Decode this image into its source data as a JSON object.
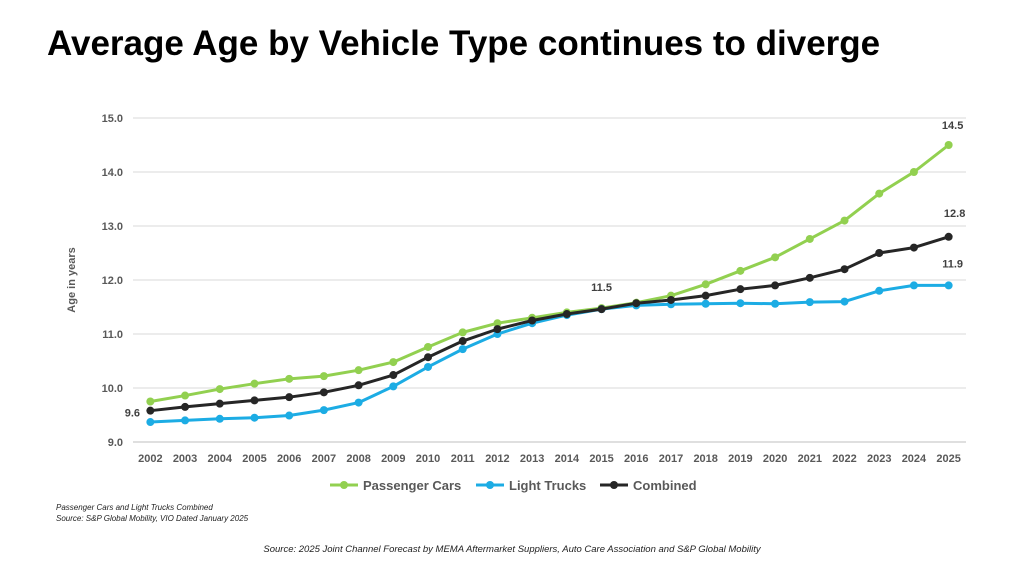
{
  "title": "Average Age by Vehicle Type continues to diverge",
  "footnote_line1": "Passenger Cars and Light Trucks Combined",
  "footnote_line2": "Source: S&P Global Mobility, VIO Dated January 2025",
  "source": "Source: 2025 Joint Channel Forecast by MEMA Aftermarket Suppliers, Auto Care Association and S&P Global Mobility",
  "chart_data": {
    "type": "line",
    "ylabel": "Age in years",
    "xlabel": "",
    "ylim": [
      9.0,
      15.0
    ],
    "y_ticks": [
      "9.0",
      "10.0",
      "11.0",
      "12.0",
      "13.0",
      "14.0",
      "15.0"
    ],
    "grid": true,
    "legend_position": "bottom",
    "categories": [
      "2002",
      "2003",
      "2004",
      "2005",
      "2006",
      "2007",
      "2008",
      "2009",
      "2010",
      "2011",
      "2012",
      "2013",
      "2014",
      "2015",
      "2016",
      "2017",
      "2018",
      "2019",
      "2020",
      "2021",
      "2022",
      "2023",
      "2024",
      "2025"
    ],
    "series": [
      {
        "name": "Passenger Cars",
        "color": "#92d050",
        "values": [
          9.75,
          9.86,
          9.98,
          10.08,
          10.17,
          10.22,
          10.33,
          10.48,
          10.76,
          11.03,
          11.2,
          11.3,
          11.4,
          11.48,
          11.58,
          11.71,
          11.92,
          12.17,
          12.42,
          12.76,
          13.1,
          13.6,
          14.0,
          14.5
        ]
      },
      {
        "name": "Light Trucks",
        "color": "#1cace4",
        "values": [
          9.37,
          9.4,
          9.43,
          9.45,
          9.49,
          9.59,
          9.73,
          10.03,
          10.39,
          10.72,
          11.0,
          11.2,
          11.35,
          11.46,
          11.53,
          11.55,
          11.56,
          11.57,
          11.56,
          11.59,
          11.6,
          11.8,
          11.9,
          11.9
        ]
      },
      {
        "name": "Combined",
        "color": "#262626",
        "values": [
          9.58,
          9.65,
          9.71,
          9.77,
          9.83,
          9.92,
          10.05,
          10.24,
          10.57,
          10.87,
          11.09,
          11.25,
          11.37,
          11.46,
          11.57,
          11.63,
          11.71,
          11.83,
          11.9,
          12.04,
          12.2,
          12.5,
          12.6,
          12.8
        ]
      }
    ],
    "annotations": [
      {
        "text": "9.6",
        "category": "2002",
        "series": "Combined"
      },
      {
        "text": "11.5",
        "category": "2015",
        "series": "Combined"
      },
      {
        "text": "14.5",
        "category": "2025",
        "series": "Passenger Cars"
      },
      {
        "text": "12.8",
        "category": "2025",
        "series": "Combined"
      },
      {
        "text": "11.9",
        "category": "2025",
        "series": "Light Trucks"
      }
    ]
  }
}
